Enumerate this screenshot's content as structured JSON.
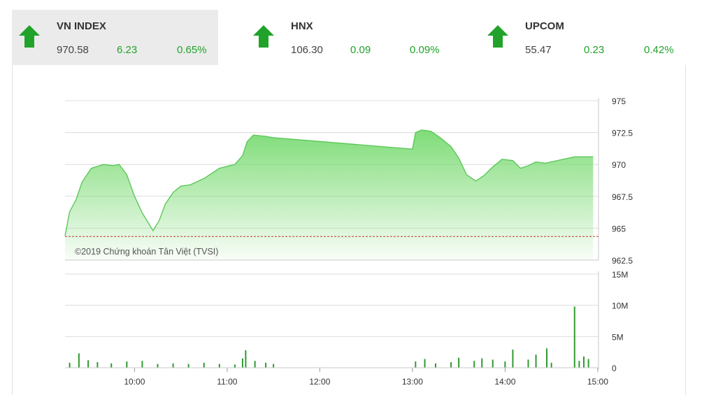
{
  "tabs": [
    {
      "name": "VN INDEX",
      "value": "970.58",
      "change": "6.23",
      "percent": "0.65%",
      "active": true
    },
    {
      "name": "HNX",
      "value": "106.30",
      "change": "0.09",
      "percent": "0.09%",
      "active": false
    },
    {
      "name": "UPCOM",
      "value": "55.47",
      "change": "0.23",
      "percent": "0.42%",
      "active": false
    }
  ],
  "colors": {
    "up": "#21a32b",
    "area": "#7fdc78",
    "line": "#5cc85a",
    "reference": "#c0392b",
    "volume": "#2f9a30"
  },
  "watermark": "©2019 Chứng khoán Tân Việt (TVSI)",
  "chart_data": {
    "type": "area",
    "price_axis": {
      "ticks": [
        "975",
        "972.5",
        "970",
        "967.5",
        "965",
        "962.5"
      ],
      "ylim": [
        962.5,
        975
      ]
    },
    "volume_axis": {
      "ticks": [
        "15M",
        "10M",
        "5M",
        "0"
      ],
      "ylim": [
        0,
        15
      ]
    },
    "time_ticks": [
      "10:00",
      "11:00",
      "12:00",
      "13:00",
      "14:00",
      "15:00"
    ],
    "reference_price": 964.35,
    "price_series": [
      {
        "t": "9:15",
        "v": 964.4
      },
      {
        "t": "9:18",
        "v": 966.3
      },
      {
        "t": "9:22",
        "v": 967.2
      },
      {
        "t": "9:26",
        "v": 968.6
      },
      {
        "t": "9:32",
        "v": 969.7
      },
      {
        "t": "9:40",
        "v": 970.0
      },
      {
        "t": "9:46",
        "v": 969.9
      },
      {
        "t": "9:50",
        "v": 970.0
      },
      {
        "t": "9:55",
        "v": 969.2
      },
      {
        "t": "10:00",
        "v": 967.5
      },
      {
        "t": "10:05",
        "v": 966.2
      },
      {
        "t": "10:10",
        "v": 965.2
      },
      {
        "t": "10:12",
        "v": 964.8
      },
      {
        "t": "10:16",
        "v": 965.6
      },
      {
        "t": "10:20",
        "v": 966.9
      },
      {
        "t": "10:25",
        "v": 967.8
      },
      {
        "t": "10:30",
        "v": 968.3
      },
      {
        "t": "10:36",
        "v": 968.4
      },
      {
        "t": "10:45",
        "v": 968.9
      },
      {
        "t": "10:55",
        "v": 969.7
      },
      {
        "t": "11:05",
        "v": 970.0
      },
      {
        "t": "11:10",
        "v": 970.7
      },
      {
        "t": "11:13",
        "v": 971.8
      },
      {
        "t": "11:17",
        "v": 972.3
      },
      {
        "t": "11:25",
        "v": 972.2
      },
      {
        "t": "11:30",
        "v": 972.1
      },
      {
        "t": "13:00",
        "v": 971.2
      },
      {
        "t": "13:02",
        "v": 972.5
      },
      {
        "t": "13:06",
        "v": 972.7
      },
      {
        "t": "13:12",
        "v": 972.6
      },
      {
        "t": "13:18",
        "v": 972.1
      },
      {
        "t": "13:25",
        "v": 971.4
      },
      {
        "t": "13:30",
        "v": 970.5
      },
      {
        "t": "13:35",
        "v": 969.2
      },
      {
        "t": "13:41",
        "v": 968.7
      },
      {
        "t": "13:46",
        "v": 969.1
      },
      {
        "t": "13:52",
        "v": 969.8
      },
      {
        "t": "13:58",
        "v": 970.4
      },
      {
        "t": "14:05",
        "v": 970.3
      },
      {
        "t": "14:10",
        "v": 969.7
      },
      {
        "t": "14:15",
        "v": 969.9
      },
      {
        "t": "14:20",
        "v": 970.2
      },
      {
        "t": "14:26",
        "v": 970.1
      },
      {
        "t": "14:45",
        "v": 970.6
      },
      {
        "t": "14:57",
        "v": 970.6
      }
    ],
    "volume_series": [
      {
        "t": "9:18",
        "v": 0.8
      },
      {
        "t": "9:24",
        "v": 2.3
      },
      {
        "t": "9:30",
        "v": 1.2
      },
      {
        "t": "9:36",
        "v": 0.9
      },
      {
        "t": "9:45",
        "v": 0.7
      },
      {
        "t": "9:55",
        "v": 1.0
      },
      {
        "t": "10:05",
        "v": 1.1
      },
      {
        "t": "10:15",
        "v": 0.6
      },
      {
        "t": "10:25",
        "v": 0.7
      },
      {
        "t": "10:35",
        "v": 0.6
      },
      {
        "t": "10:45",
        "v": 0.8
      },
      {
        "t": "10:55",
        "v": 0.6
      },
      {
        "t": "11:05",
        "v": 0.5
      },
      {
        "t": "11:10",
        "v": 1.5
      },
      {
        "t": "11:12",
        "v": 2.8
      },
      {
        "t": "11:18",
        "v": 1.1
      },
      {
        "t": "11:25",
        "v": 0.8
      },
      {
        "t": "11:30",
        "v": 0.6
      },
      {
        "t": "13:02",
        "v": 1.0
      },
      {
        "t": "13:08",
        "v": 1.4
      },
      {
        "t": "13:15",
        "v": 0.7
      },
      {
        "t": "13:25",
        "v": 0.9
      },
      {
        "t": "13:30",
        "v": 1.6
      },
      {
        "t": "13:40",
        "v": 1.1
      },
      {
        "t": "13:45",
        "v": 1.5
      },
      {
        "t": "13:52",
        "v": 1.3
      },
      {
        "t": "14:00",
        "v": 1.0
      },
      {
        "t": "14:05",
        "v": 2.9
      },
      {
        "t": "14:15",
        "v": 1.3
      },
      {
        "t": "14:20",
        "v": 2.1
      },
      {
        "t": "14:27",
        "v": 3.1
      },
      {
        "t": "14:30",
        "v": 0.8
      },
      {
        "t": "14:45",
        "v": 9.8
      },
      {
        "t": "14:48",
        "v": 1.1
      },
      {
        "t": "14:51",
        "v": 1.8
      },
      {
        "t": "14:54",
        "v": 1.4
      }
    ]
  }
}
